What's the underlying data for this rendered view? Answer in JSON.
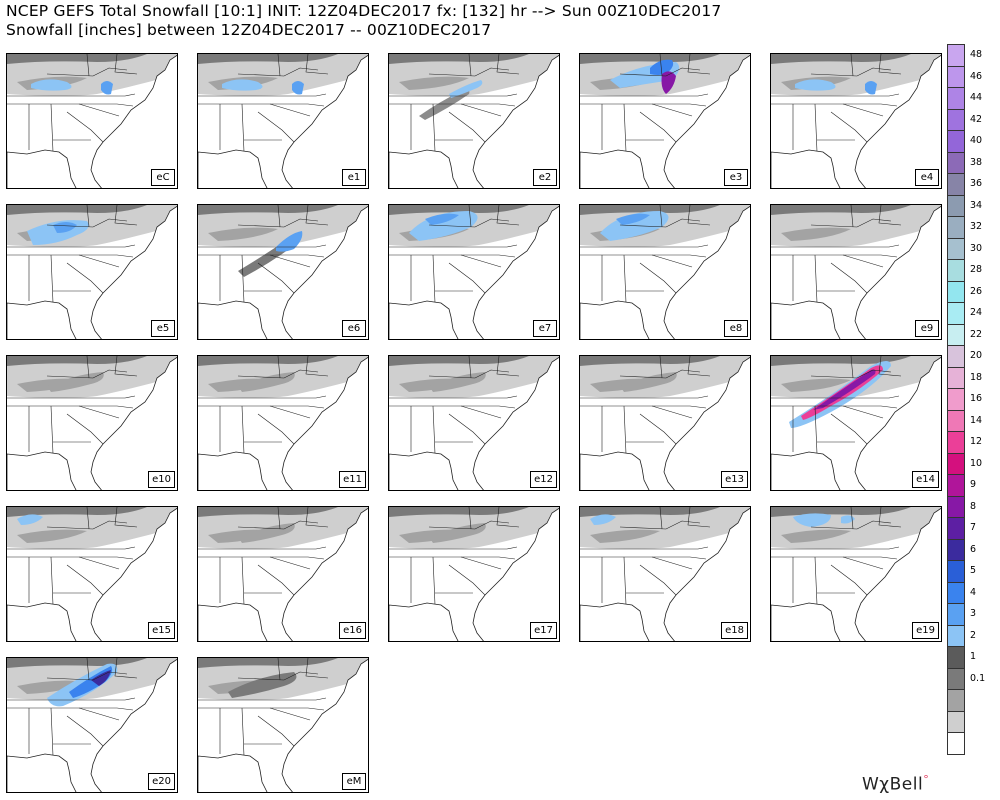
{
  "header": {
    "line1": "NCEP GEFS Total Snowfall [10:1] INIT: 12Z04DEC2017 fx: [132] hr --> Sun 00Z10DEC2017",
    "line2": "Snowfall [inches] between 12Z04DEC2017 -- 00Z10DEC2017"
  },
  "panels": [
    {
      "label": "eC",
      "snow": "light"
    },
    {
      "label": "e1",
      "snow": "light"
    },
    {
      "label": "e2",
      "snow": "diagonal"
    },
    {
      "label": "e3",
      "snow": "heavy-ne"
    },
    {
      "label": "e4",
      "snow": "light"
    },
    {
      "label": "e5",
      "snow": "north"
    },
    {
      "label": "e6",
      "snow": "diagonal-east"
    },
    {
      "label": "e7",
      "snow": "north-wide"
    },
    {
      "label": "e8",
      "snow": "north-wide"
    },
    {
      "label": "e9",
      "snow": "none"
    },
    {
      "label": "e10",
      "snow": "trace"
    },
    {
      "label": "e11",
      "snow": "trace"
    },
    {
      "label": "e12",
      "snow": "trace"
    },
    {
      "label": "e13",
      "snow": "trace"
    },
    {
      "label": "e14",
      "snow": "extreme"
    },
    {
      "label": "e15",
      "snow": "trace-nw"
    },
    {
      "label": "e16",
      "snow": "trace"
    },
    {
      "label": "e17",
      "snow": "trace"
    },
    {
      "label": "e18",
      "snow": "trace-nw"
    },
    {
      "label": "e19",
      "snow": "trace-n"
    },
    {
      "label": "e20",
      "snow": "heavy-ne2"
    },
    {
      "label": "eM",
      "snow": "mean"
    }
  ],
  "colorbar": {
    "labels": [
      "48",
      "46",
      "44",
      "42",
      "40",
      "38",
      "36",
      "34",
      "32",
      "30",
      "28",
      "26",
      "24",
      "22",
      "20",
      "18",
      "16",
      "14",
      "12",
      "10",
      "9",
      "8",
      "7",
      "6",
      "5",
      "4",
      "3",
      "2",
      "1",
      "0.1"
    ],
    "colors": [
      "#c9a6ef",
      "#bd96ec",
      "#ae84e6",
      "#9f73df",
      "#9366d9",
      "#8c6ab7",
      "#8784a7",
      "#8c9bb0",
      "#9aaec0",
      "#a6c0cf",
      "#a8dde0",
      "#93e6ef",
      "#a9ecf3",
      "#c8eef1",
      "#d8c3dc",
      "#e6b2d7",
      "#f09ccc",
      "#ef78b6",
      "#eb3f98",
      "#d4107e",
      "#b0159a",
      "#8718a6",
      "#5d1fa3",
      "#3b2b9e",
      "#2a5fd7",
      "#3a83ee",
      "#5aa1f2",
      "#8cc4f5",
      "#5b5b5b",
      "#7a7a7a",
      "#a3a3a3",
      "#cfcfcf",
      "#ffffff"
    ]
  },
  "logo": {
    "text": "WχBell",
    "mark": "°"
  }
}
